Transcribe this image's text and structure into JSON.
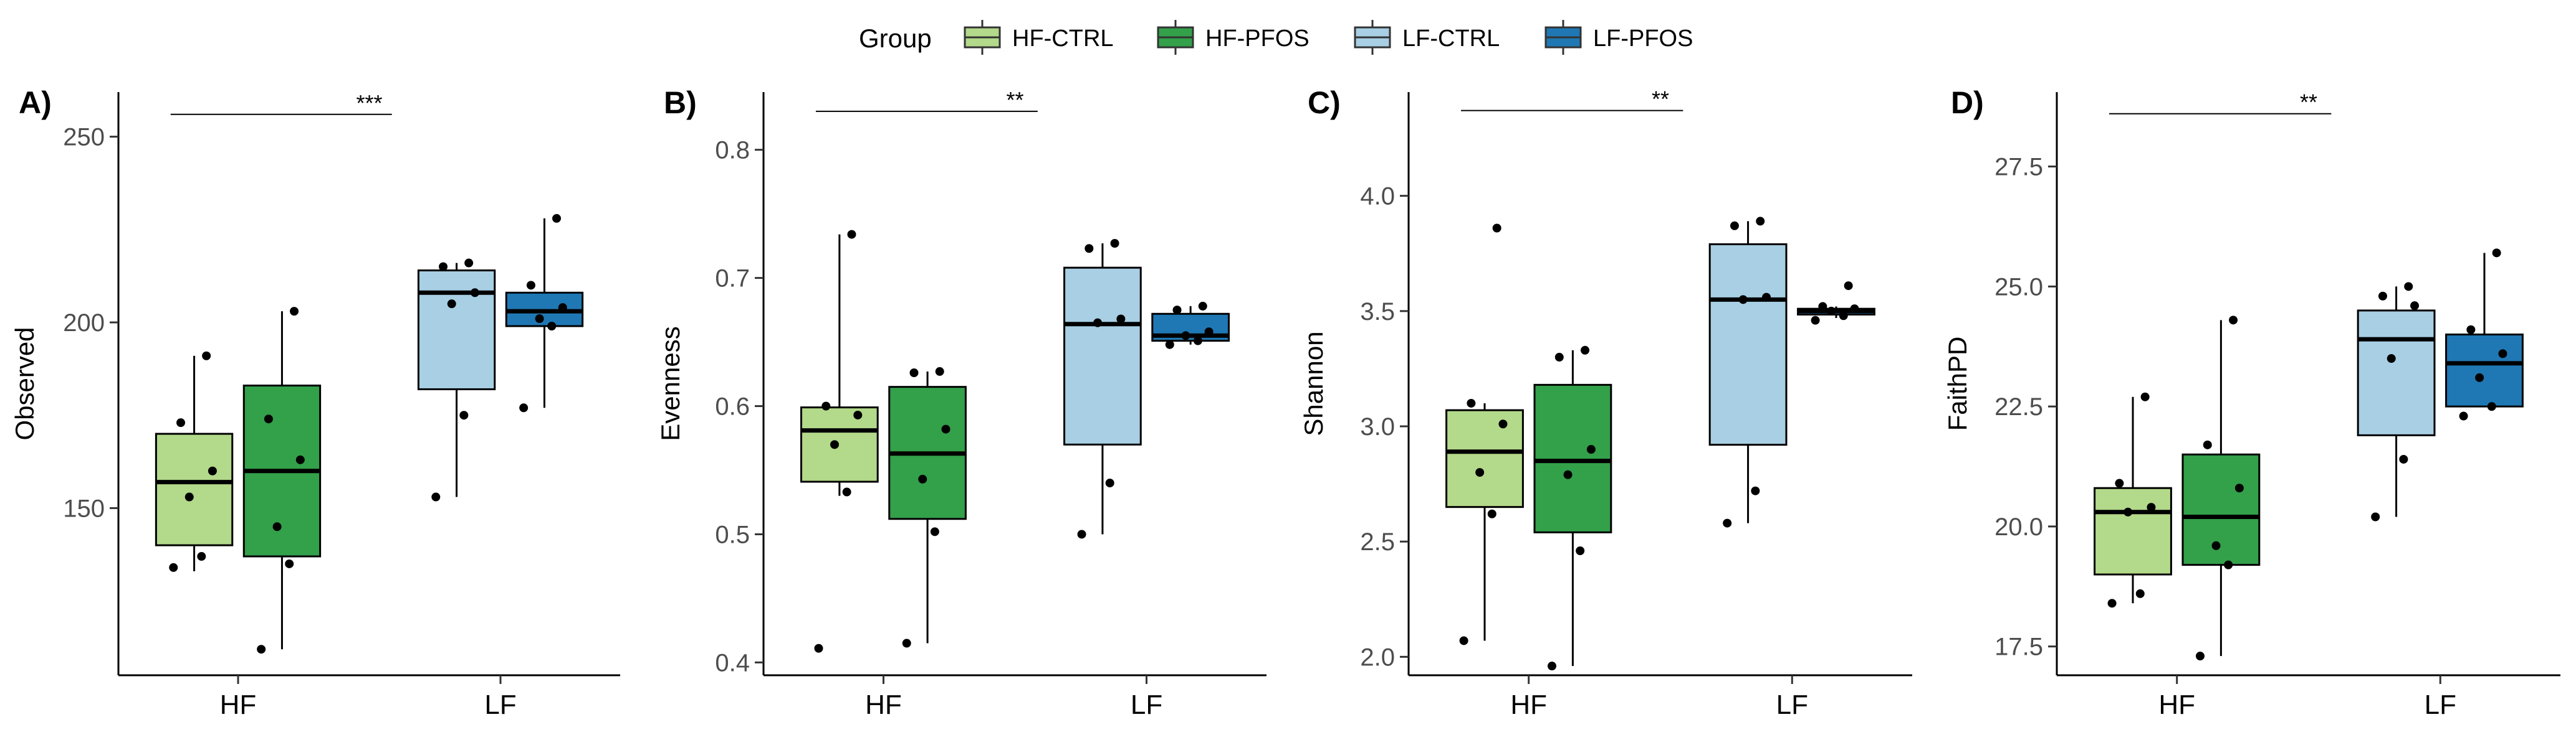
{
  "legend": {
    "title": "Group",
    "placement": "top",
    "items": [
      {
        "label": "HF-CTRL",
        "color": "#b3d98a"
      },
      {
        "label": "HF-PFOS",
        "color": "#33a04a"
      },
      {
        "label": "LF-CTRL",
        "color": "#a8cfe4"
      },
      {
        "label": "LF-PFOS",
        "color": "#1f78b4"
      }
    ]
  },
  "chart_data": [
    {
      "type": "box",
      "panel_label": "A)",
      "ylabel": "Observed",
      "ylim": [
        105,
        262
      ],
      "yticks": [
        150,
        200,
        250
      ],
      "categories": [
        "HF",
        "LF"
      ],
      "significance": {
        "label": "***",
        "from": "HF",
        "to": "LF",
        "y": 256
      },
      "boxes": [
        {
          "group": "HF-CTRL",
          "category": "HF",
          "min": 133,
          "q1": 140,
          "median": 157,
          "q3": 170,
          "max": 191,
          "points": [
            134,
            137,
            153,
            160,
            173,
            191
          ]
        },
        {
          "group": "HF-PFOS",
          "category": "HF",
          "min": 112,
          "q1": 137,
          "median": 160,
          "q3": 183,
          "max": 203,
          "points": [
            112,
            135,
            145,
            163,
            174,
            203
          ]
        },
        {
          "group": "LF-CTRL",
          "category": "LF",
          "min": 153,
          "q1": 182,
          "median": 208,
          "q3": 214,
          "max": 216,
          "points": [
            153,
            175,
            205,
            208,
            215,
            216
          ]
        },
        {
          "group": "LF-PFOS",
          "category": "LF",
          "min": 177,
          "q1": 199,
          "median": 203,
          "q3": 208,
          "max": 228,
          "points": [
            177,
            199,
            201,
            204,
            210,
            228
          ]
        }
      ]
    },
    {
      "type": "box",
      "panel_label": "B)",
      "ylabel": "Evenness",
      "ylim": [
        0.39,
        0.845
      ],
      "yticks": [
        0.4,
        0.5,
        0.6,
        0.7,
        0.8
      ],
      "categories": [
        "HF",
        "LF"
      ],
      "significance": {
        "label": "**",
        "from": "HF",
        "to": "LF",
        "y": 0.83
      },
      "boxes": [
        {
          "group": "HF-CTRL",
          "category": "HF",
          "min": 0.53,
          "q1": 0.541,
          "median": 0.581,
          "q3": 0.599,
          "max": 0.734,
          "points": [
            0.411,
            0.533,
            0.57,
            0.593,
            0.6,
            0.734
          ]
        },
        {
          "group": "HF-PFOS",
          "category": "HF",
          "min": 0.415,
          "q1": 0.512,
          "median": 0.563,
          "q3": 0.615,
          "max": 0.627,
          "points": [
            0.415,
            0.502,
            0.543,
            0.582,
            0.626,
            0.627
          ]
        },
        {
          "group": "LF-CTRL",
          "category": "LF",
          "min": 0.5,
          "q1": 0.57,
          "median": 0.664,
          "q3": 0.708,
          "max": 0.727,
          "points": [
            0.5,
            0.54,
            0.665,
            0.668,
            0.723,
            0.727
          ]
        },
        {
          "group": "LF-PFOS",
          "category": "LF",
          "min": 0.648,
          "q1": 0.651,
          "median": 0.655,
          "q3": 0.672,
          "max": 0.678,
          "points": [
            0.648,
            0.651,
            0.655,
            0.658,
            0.675,
            0.678
          ]
        }
      ]
    },
    {
      "type": "box",
      "panel_label": "C)",
      "ylabel": "Shannon",
      "ylim": [
        1.92,
        4.45
      ],
      "yticks": [
        2.0,
        2.5,
        3.0,
        3.5,
        4.0
      ],
      "categories": [
        "HF",
        "LF"
      ],
      "significance": {
        "label": "**",
        "from": "HF",
        "to": "LF",
        "y": 4.37
      },
      "boxes": [
        {
          "group": "HF-CTRL",
          "category": "HF",
          "min": 2.07,
          "q1": 2.65,
          "median": 2.89,
          "q3": 3.07,
          "max": 3.1,
          "points": [
            2.07,
            2.62,
            2.8,
            3.01,
            3.1,
            3.86
          ]
        },
        {
          "group": "HF-PFOS",
          "category": "HF",
          "min": 1.96,
          "q1": 2.54,
          "median": 2.85,
          "q3": 3.18,
          "max": 3.33,
          "points": [
            1.96,
            2.46,
            2.79,
            2.9,
            3.3,
            3.33
          ]
        },
        {
          "group": "LF-CTRL",
          "category": "LF",
          "min": 2.58,
          "q1": 2.92,
          "median": 3.55,
          "q3": 3.79,
          "max": 3.89,
          "points": [
            2.58,
            2.72,
            3.55,
            3.56,
            3.87,
            3.89
          ]
        },
        {
          "group": "LF-PFOS",
          "category": "LF",
          "min": 3.47,
          "q1": 3.485,
          "median": 3.5,
          "q3": 3.51,
          "max": 3.52,
          "points": [
            3.46,
            3.48,
            3.5,
            3.51,
            3.52,
            3.61
          ]
        }
      ]
    },
    {
      "type": "box",
      "panel_label": "D)",
      "ylabel": "FaithPD",
      "ylim": [
        16.9,
        29.05
      ],
      "yticks": [
        17.5,
        20.0,
        22.5,
        25.0,
        27.5
      ],
      "categories": [
        "HF",
        "LF"
      ],
      "significance": {
        "label": "**",
        "from": "HF",
        "to": "LF",
        "y": 28.6
      },
      "boxes": [
        {
          "group": "HF-CTRL",
          "category": "HF",
          "min": 18.4,
          "q1": 19.0,
          "median": 20.3,
          "q3": 20.8,
          "max": 22.7,
          "points": [
            18.4,
            18.6,
            20.3,
            20.4,
            20.9,
            22.7
          ]
        },
        {
          "group": "HF-PFOS",
          "category": "HF",
          "min": 17.3,
          "q1": 19.2,
          "median": 20.2,
          "q3": 21.5,
          "max": 24.3,
          "points": [
            17.3,
            19.2,
            19.6,
            20.8,
            21.7,
            24.3
          ]
        },
        {
          "group": "LF-CTRL",
          "category": "LF",
          "min": 20.2,
          "q1": 21.9,
          "median": 23.9,
          "q3": 24.5,
          "max": 25.0,
          "points": [
            20.2,
            21.4,
            23.5,
            24.6,
            24.8,
            25.0
          ]
        },
        {
          "group": "LF-PFOS",
          "category": "LF",
          "min": 22.5,
          "q1": 22.5,
          "median": 23.4,
          "q3": 24.0,
          "max": 25.7,
          "points": [
            22.3,
            22.5,
            23.1,
            23.6,
            24.1,
            25.7
          ]
        }
      ]
    }
  ]
}
